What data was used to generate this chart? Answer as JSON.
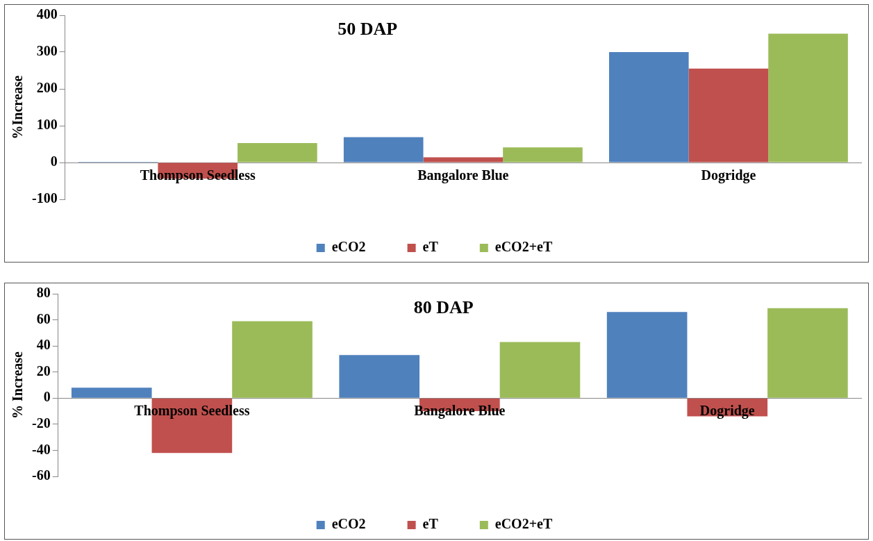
{
  "chart_data": [
    {
      "type": "bar",
      "title": "50 DAP",
      "ylabel": "%Increase",
      "categories": [
        "Thompson Seedless",
        "Bangalore Blue",
        "Dogridge"
      ],
      "series": [
        {
          "name": "eCO2",
          "color": "#4f81bd",
          "values": [
            2,
            69,
            300
          ]
        },
        {
          "name": "eT",
          "color": "#c0504d",
          "values": [
            -44,
            14,
            255
          ]
        },
        {
          "name": "eCO2+eT",
          "color": "#9bbb59",
          "values": [
            53,
            41,
            350
          ]
        }
      ],
      "ylim": [
        -100,
        400
      ],
      "yticks": [
        -100,
        0,
        100,
        200,
        300,
        400
      ],
      "grid": false,
      "legend": "bottom"
    },
    {
      "type": "bar",
      "title": "80 DAP",
      "ylabel": "% Increase",
      "categories": [
        "Thompson Seedless",
        "Bangalore Blue",
        "Dogridge"
      ],
      "series": [
        {
          "name": "eCO2",
          "color": "#4f81bd",
          "values": [
            8,
            33,
            66
          ]
        },
        {
          "name": "eT",
          "color": "#c0504d",
          "values": [
            -42,
            -10,
            -14
          ]
        },
        {
          "name": "eCO2+eT",
          "color": "#9bbb59",
          "values": [
            59,
            43,
            69
          ]
        }
      ],
      "ylim": [
        -60,
        80
      ],
      "yticks": [
        -60,
        -40,
        -20,
        0,
        20,
        40,
        60,
        80
      ],
      "grid": false,
      "legend": "bottom"
    }
  ]
}
